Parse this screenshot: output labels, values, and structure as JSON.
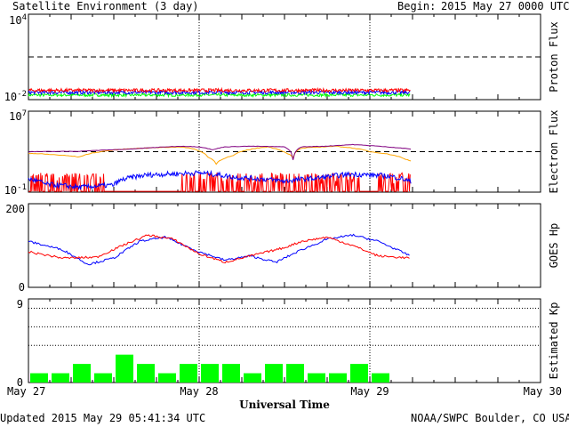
{
  "header": {
    "title": "Satellite Environment (3 day)",
    "begin_label": "Begin:",
    "begin_value": "2015 May 27 0000 UTC"
  },
  "footer": {
    "updated": "Updated 2015 May 29 05:41:34 UTC",
    "credit": "NOAA/SWPC Boulder, CO USA"
  },
  "x_axis": {
    "label": "Universal Time",
    "ticks": [
      "May 27",
      "May 28",
      "May 29",
      "May 30"
    ],
    "range_days": [
      0,
      3
    ],
    "data_end_day": 2.24
  },
  "chart_data": [
    {
      "type": "line",
      "panel": "proton",
      "ylabel": "Proton Flux",
      "yscale": "log",
      "ylim": [
        0.01,
        10000
      ],
      "ytick_labels": {
        "top_base": "10",
        "top_exp": "4",
        "bottom_base": "10",
        "bottom_exp": "-2"
      },
      "threshold": 10,
      "colors": {
        "series1": "#ff0000",
        "series2": "#0000ff",
        "series3": "#00ff00"
      },
      "series": [
        {
          "mean": 0.045,
          "noise": 0.12
        },
        {
          "mean": 0.032,
          "noise": 0.12
        },
        {
          "mean": 0.021,
          "noise": 0.1
        }
      ]
    },
    {
      "type": "line",
      "panel": "electron",
      "ylabel": "Electron Flux",
      "yscale": "log",
      "ylim": [
        0.1,
        10000000
      ],
      "ytick_labels": {
        "top_base": "10",
        "top_exp": "7",
        "bottom_base": "10",
        "bottom_exp": "-1"
      },
      "threshold": 1000,
      "colors": {
        "series1": "#800080",
        "series2": "#ffa500",
        "series3": "#0000ff",
        "series4": "#ff0000"
      },
      "series": [
        {
          "x": [
            0,
            0.3,
            0.6,
            0.9,
            1.0,
            1.08,
            1.15,
            1.3,
            1.5,
            1.55,
            1.6,
            1.75,
            1.9,
            2.1,
            2.24
          ],
          "y": [
            1000,
            1100,
            1800,
            3500,
            3000,
            1500,
            3000,
            3500,
            3000,
            150,
            3000,
            3500,
            5000,
            3000,
            1800
          ]
        },
        {
          "x": [
            0,
            0.3,
            0.6,
            0.9,
            1.05,
            1.1,
            1.2,
            1.4,
            1.5,
            1.55,
            1.6,
            1.8,
            2.0,
            2.2,
            2.24
          ],
          "y": [
            700,
            300,
            2000,
            3000,
            300,
            60,
            400,
            3000,
            900,
            250,
            2200,
            3500,
            1000,
            200,
            120
          ]
        },
        {
          "x": [
            0,
            0.1,
            0.3,
            0.5,
            0.7,
            1.0,
            1.2,
            1.5,
            1.7,
            1.9,
            2.1,
            2.24
          ],
          "y": [
            2,
            0.6,
            0.3,
            0.5,
            5,
            8,
            3,
            1.2,
            2.5,
            6,
            4,
            1
          ]
        },
        {
          "low": 0.12,
          "spike_min": 0.4,
          "spike_max": 8
        }
      ]
    },
    {
      "type": "line",
      "panel": "hp",
      "ylabel": "GOES Hp",
      "ylim": [
        0,
        200
      ],
      "yticks": [
        "200",
        "0"
      ],
      "colors": {
        "series1": "#0000ff",
        "series2": "#ff0000"
      },
      "series": [
        {
          "x": [
            0,
            0.2,
            0.35,
            0.5,
            0.65,
            0.8,
            1.0,
            1.15,
            1.3,
            1.45,
            1.6,
            1.75,
            1.9,
            2.05,
            2.24
          ],
          "y": [
            110,
            90,
            55,
            70,
            110,
            120,
            85,
            65,
            75,
            60,
            90,
            115,
            125,
            110,
            75
          ]
        },
        {
          "x": [
            0,
            0.2,
            0.4,
            0.55,
            0.7,
            0.85,
            1.0,
            1.15,
            1.3,
            1.5,
            1.6,
            1.75,
            1.9,
            2.05,
            2.24
          ],
          "y": [
            85,
            70,
            72,
            100,
            125,
            115,
            80,
            60,
            75,
            95,
            110,
            120,
            100,
            75,
            70
          ]
        }
      ]
    },
    {
      "type": "bar",
      "panel": "kp",
      "ylabel": "Estimated Kp",
      "ylim": [
        0,
        9
      ],
      "yticks": [
        "9",
        "0"
      ],
      "gridlines": [
        4,
        6,
        8
      ],
      "colors": {
        "bar": "#00ff00"
      },
      "bin_hours": 3,
      "values": [
        1,
        1,
        2,
        1,
        3,
        2,
        1,
        2,
        2,
        2,
        1,
        2,
        2,
        1,
        1,
        2,
        1
      ]
    }
  ]
}
